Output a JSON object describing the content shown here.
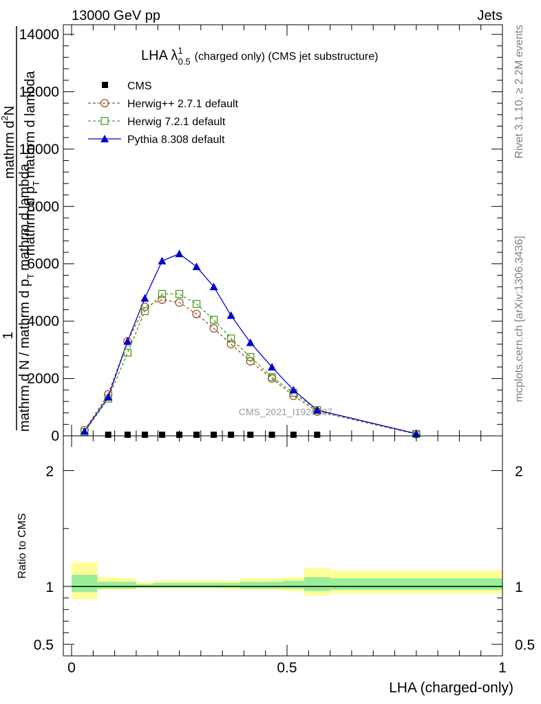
{
  "header": {
    "left": "13000 GeV pp",
    "right": "Jets"
  },
  "side_labels": {
    "rivet": "Rivet 3.1.10, ≥ 2.2M events",
    "mcplots": "mcplots.cern.ch [arXiv:1306.3436]"
  },
  "watermark": "CMS_2021_I1920187",
  "chart_data": [
    {
      "type": "line",
      "title_main": "LHA λ",
      "title_sup": "1",
      "title_sub": "0.5",
      "title_rest": "(charged only) (CMS jet substructure)",
      "xlim": [
        0,
        1
      ],
      "ylim": [
        0,
        14000
      ],
      "yticks": [
        {
          "v": 0,
          "label": "0"
        },
        {
          "v": 2000,
          "label": "2000"
        },
        {
          "v": 4000,
          "label": "4000"
        },
        {
          "v": 6000,
          "label": "6000"
        },
        {
          "v": 8000,
          "label": "8000"
        },
        {
          "v": 10000,
          "label": "10000"
        },
        {
          "v": 12000,
          "label": "12000"
        },
        {
          "v": 14000,
          "label": "14000"
        }
      ],
      "ylabel_parts": [
        "1",
        "mathrm d N / mathrm d p",
        "T",
        "mathrm d lambda",
        "mathrm d",
        "2",
        "N",
        "mathrm d p",
        "T",
        "mathrm d lambda"
      ],
      "legend": [
        {
          "name": "CMS",
          "color": "#000000",
          "marker": "square-filled",
          "dash": "none"
        },
        {
          "name": "Herwig++ 2.7.1 default",
          "color": "#a0522d",
          "marker": "circle-open",
          "dash": "dashed"
        },
        {
          "name": "Herwig 7.2.1 default",
          "color": "#4a9a20",
          "marker": "square-open",
          "dash": "dashed"
        },
        {
          "name": "Pythia 8.308 default",
          "color": "#0000cc",
          "marker": "triangle-filled",
          "dash": "solid"
        }
      ],
      "series": [
        {
          "name": "CMS",
          "x": [
            0.085,
            0.13,
            0.17,
            0.21,
            0.25,
            0.29,
            0.33,
            0.37,
            0.415,
            0.465,
            0.515,
            0.57
          ],
          "values": [
            40,
            40,
            40,
            40,
            40,
            40,
            40,
            40,
            40,
            40,
            40,
            40
          ]
        },
        {
          "name": "Herwig++ 2.7.1 default",
          "x": [
            0.03,
            0.085,
            0.13,
            0.17,
            0.21,
            0.25,
            0.29,
            0.33,
            0.37,
            0.415,
            0.465,
            0.515,
            0.57,
            0.8
          ],
          "values": [
            200,
            1450,
            3300,
            4500,
            4750,
            4650,
            4250,
            3750,
            3200,
            2600,
            2000,
            1400,
            850,
            60
          ]
        },
        {
          "name": "Herwig 7.2.1 default",
          "x": [
            0.03,
            0.085,
            0.13,
            0.17,
            0.21,
            0.25,
            0.29,
            0.33,
            0.37,
            0.415,
            0.465,
            0.515,
            0.57,
            0.8
          ],
          "values": [
            130,
            1300,
            2900,
            4350,
            4950,
            4950,
            4600,
            4050,
            3400,
            2750,
            2050,
            1500,
            900,
            70
          ]
        },
        {
          "name": "Pythia 8.308 default",
          "x": [
            0.03,
            0.085,
            0.13,
            0.17,
            0.21,
            0.25,
            0.29,
            0.33,
            0.37,
            0.415,
            0.465,
            0.515,
            0.57,
            0.8
          ],
          "values": [
            160,
            1350,
            3300,
            4800,
            6100,
            6350,
            5900,
            5200,
            4200,
            3250,
            2400,
            1600,
            900,
            80
          ]
        }
      ]
    },
    {
      "type": "area",
      "ylabel": "Ratio to CMS",
      "xlabel": "LHA (charged-only)",
      "xlim": [
        0,
        1
      ],
      "ylim": [
        0.4,
        2.3
      ],
      "xticks": [
        {
          "v": 0,
          "label": "0"
        },
        {
          "v": 0.5,
          "label": "0.5"
        },
        {
          "v": 1,
          "label": "1"
        }
      ],
      "yticks": [
        {
          "v": 0.5,
          "label": "0.5"
        },
        {
          "v": 1,
          "label": "1"
        },
        {
          "v": 2,
          "label": "2"
        }
      ],
      "reference": 1,
      "bins": [
        {
          "x0": 0.0,
          "x1": 0.06,
          "y_lo": 0.89,
          "y_hi": 1.21,
          "g_lo": 0.95,
          "g_hi": 1.1
        },
        {
          "x0": 0.06,
          "x1": 0.11,
          "y_lo": 0.97,
          "y_hi": 1.08,
          "g_lo": 0.98,
          "g_hi": 1.04
        },
        {
          "x0": 0.11,
          "x1": 0.15,
          "y_lo": 0.97,
          "y_hi": 1.07,
          "g_lo": 0.98,
          "g_hi": 1.04
        },
        {
          "x0": 0.15,
          "x1": 0.19,
          "y_lo": 0.98,
          "y_hi": 1.04,
          "g_lo": 0.99,
          "g_hi": 1.02
        },
        {
          "x0": 0.19,
          "x1": 0.23,
          "y_lo": 0.98,
          "y_hi": 1.05,
          "g_lo": 0.99,
          "g_hi": 1.03
        },
        {
          "x0": 0.23,
          "x1": 0.27,
          "y_lo": 0.98,
          "y_hi": 1.05,
          "g_lo": 0.99,
          "g_hi": 1.03
        },
        {
          "x0": 0.27,
          "x1": 0.31,
          "y_lo": 0.98,
          "y_hi": 1.05,
          "g_lo": 0.99,
          "g_hi": 1.03
        },
        {
          "x0": 0.31,
          "x1": 0.35,
          "y_lo": 0.98,
          "y_hi": 1.05,
          "g_lo": 0.99,
          "g_hi": 1.03
        },
        {
          "x0": 0.35,
          "x1": 0.39,
          "y_lo": 0.97,
          "y_hi": 1.05,
          "g_lo": 0.99,
          "g_hi": 1.03
        },
        {
          "x0": 0.39,
          "x1": 0.44,
          "y_lo": 0.97,
          "y_hi": 1.07,
          "g_lo": 0.98,
          "g_hi": 1.04
        },
        {
          "x0": 0.44,
          "x1": 0.49,
          "y_lo": 0.97,
          "y_hi": 1.07,
          "g_lo": 0.98,
          "g_hi": 1.04
        },
        {
          "x0": 0.49,
          "x1": 0.54,
          "y_lo": 0.96,
          "y_hi": 1.08,
          "g_lo": 0.98,
          "g_hi": 1.05
        },
        {
          "x0": 0.54,
          "x1": 0.6,
          "y_lo": 0.92,
          "y_hi": 1.16,
          "g_lo": 0.96,
          "g_hi": 1.08
        },
        {
          "x0": 0.6,
          "x1": 1.0,
          "y_lo": 0.94,
          "y_hi": 1.14,
          "g_lo": 0.97,
          "g_hi": 1.07
        }
      ],
      "band_colors": {
        "yellow": "#ffff99",
        "green": "#99ee99"
      }
    }
  ]
}
